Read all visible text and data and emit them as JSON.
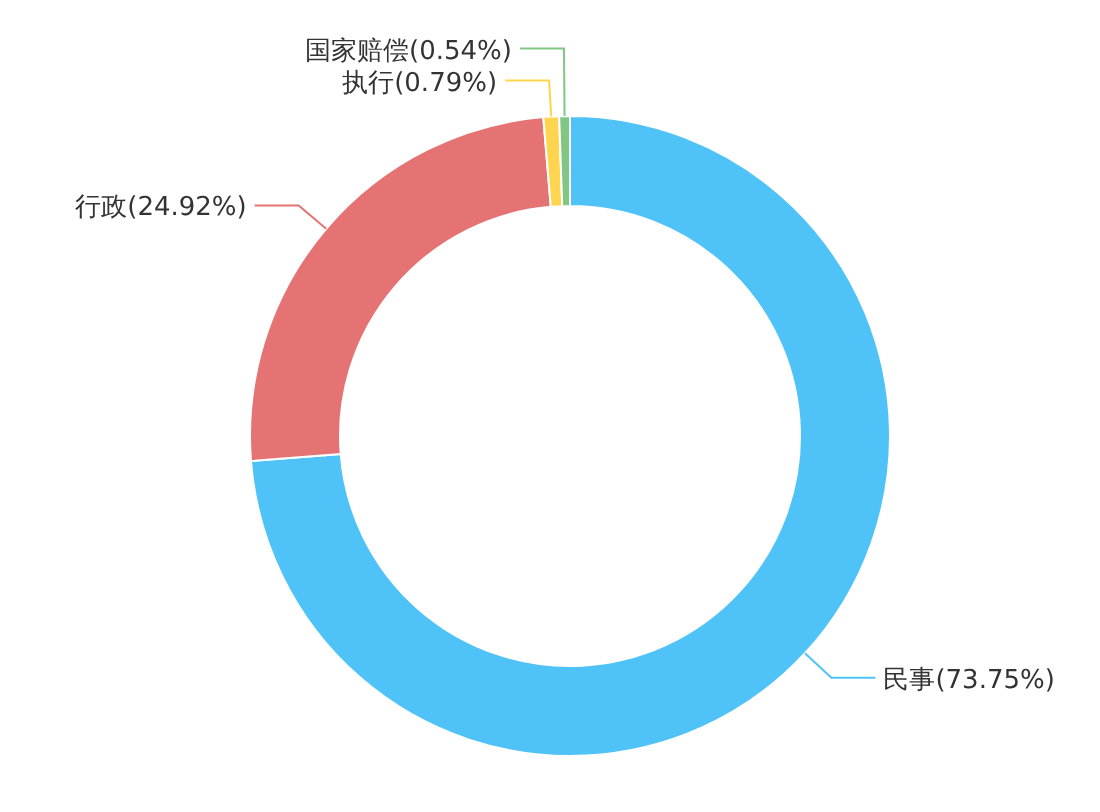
{
  "chart_data": {
    "type": "donut",
    "categories": [
      "民事",
      "行政",
      "执行",
      "国家赔偿"
    ],
    "values": [
      73.75,
      24.92,
      0.79,
      0.54
    ],
    "colors": [
      "#4fc3f7",
      "#e57373",
      "#ffd54f",
      "#81c784"
    ],
    "value_labels": [
      "(73.75%)",
      "(24.92%)",
      "(0.79%)",
      "(0.54%)"
    ]
  }
}
